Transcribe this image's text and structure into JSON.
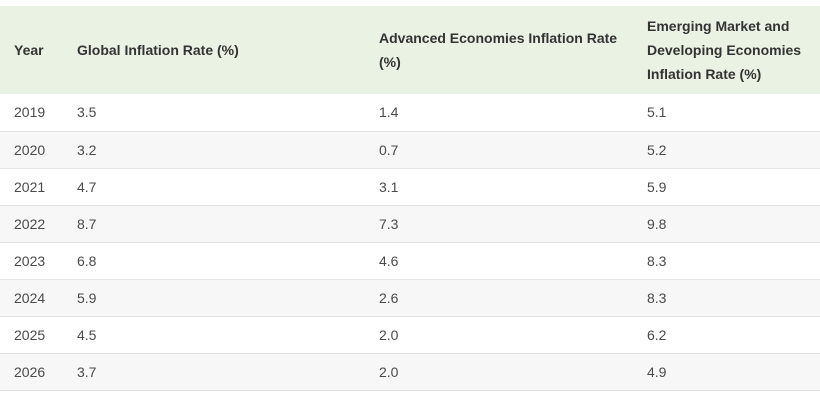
{
  "table": {
    "headers": [
      "Year",
      "Global Inflation Rate (%)",
      "Advanced Economies Inflation Rate (%)",
      "Emerging Market and Developing Economies Inflation Rate (%)"
    ],
    "rows": [
      [
        "2019",
        "3.5",
        "1.4",
        "5.1"
      ],
      [
        "2020",
        "3.2",
        "0.7",
        "5.2"
      ],
      [
        "2021",
        "4.7",
        "3.1",
        "5.9"
      ],
      [
        "2022",
        "8.7",
        "7.3",
        "9.8"
      ],
      [
        "2023",
        "6.8",
        "4.6",
        "8.3"
      ],
      [
        "2024",
        "5.9",
        "2.6",
        "8.3"
      ],
      [
        "2025",
        "4.5",
        "2.0",
        "6.2"
      ],
      [
        "2026",
        "3.7",
        "2.0",
        "4.9"
      ]
    ]
  },
  "colors": {
    "header_background": "#eaf2e3",
    "stripe_background": "#f7f7f7"
  }
}
